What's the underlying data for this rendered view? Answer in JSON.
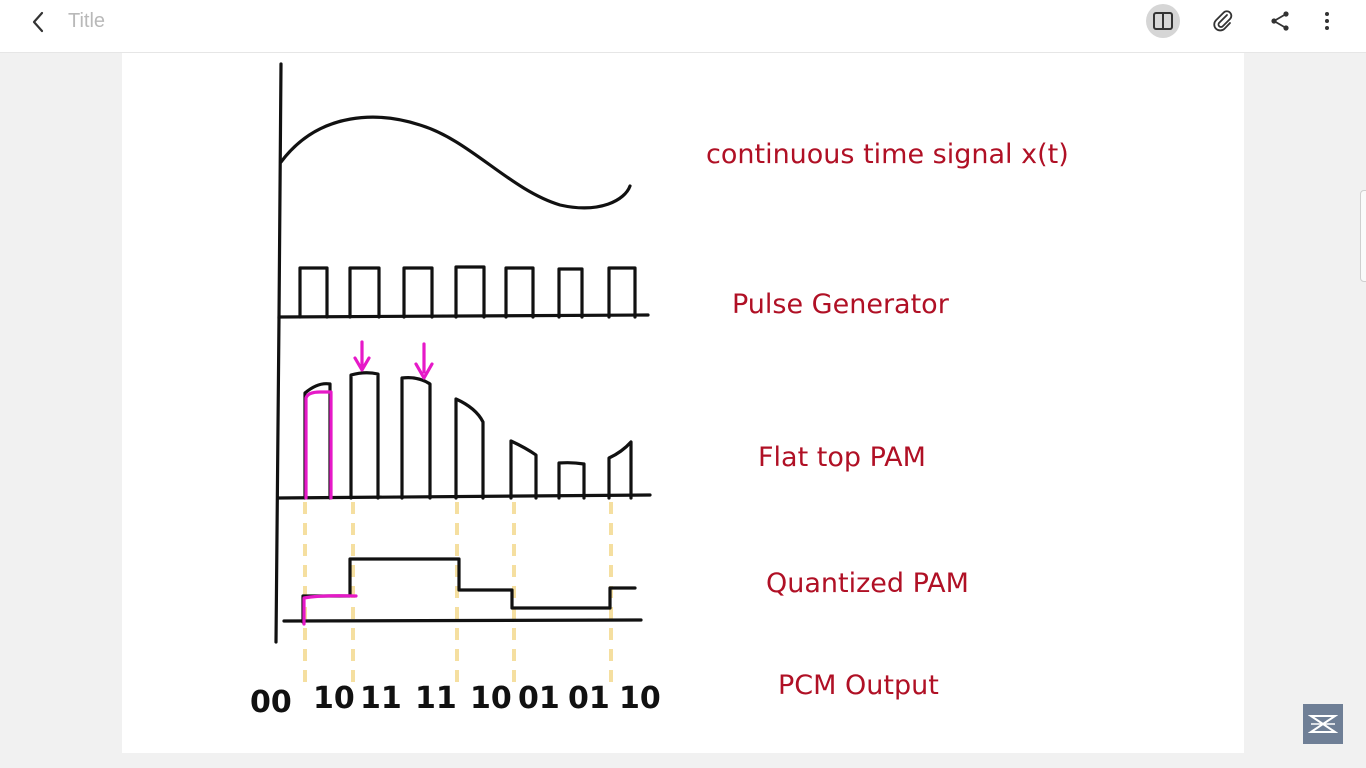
{
  "toolbar": {
    "title": "Title",
    "icons": [
      "back-icon",
      "book-icon",
      "paperclip-icon",
      "share-icon",
      "more-icon"
    ]
  },
  "diagram": {
    "labels": {
      "continuous": "continuous time signal x(t)",
      "pulse": "Pulse Generator",
      "flat_top": "Flat top PAM",
      "quantized": "Quantized PAM",
      "pcm": "PCM Output"
    },
    "pcm_bits": [
      "00",
      "10",
      "11",
      "11",
      "10",
      "01",
      "01",
      "10"
    ]
  },
  "colors": {
    "label_red": "#b01025",
    "highlight_magenta": "#e619c8",
    "guide_yellow": "#f5dfa0",
    "ink": "#111111"
  }
}
